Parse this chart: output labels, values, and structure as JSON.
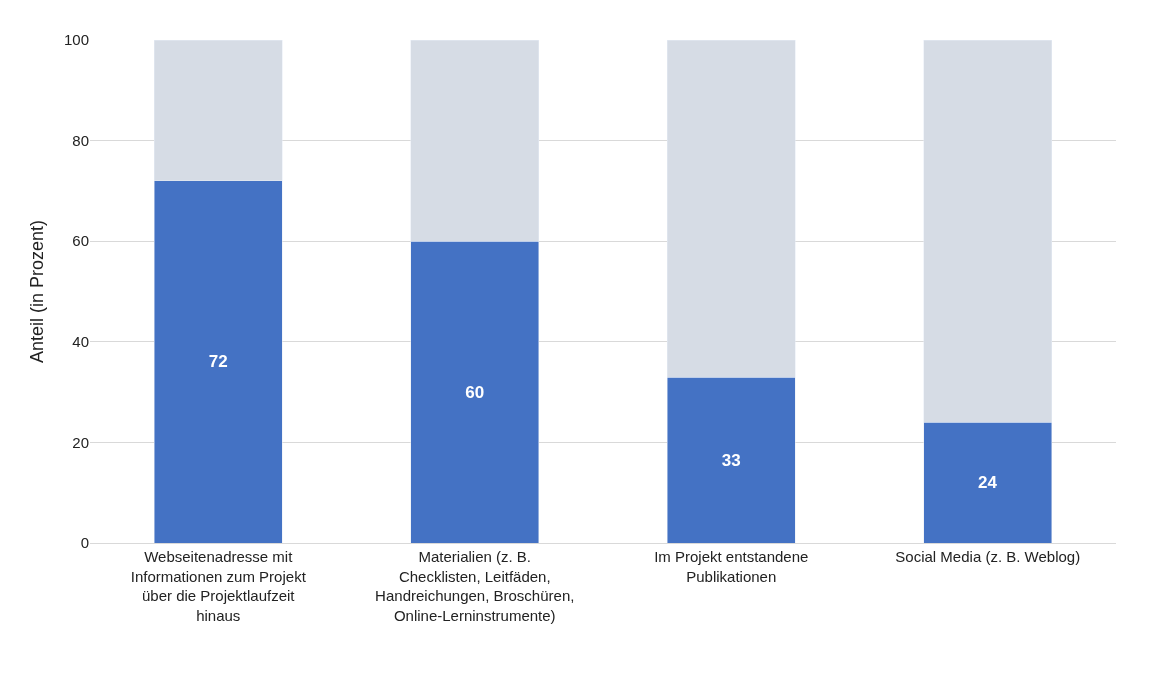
{
  "chart_data": {
    "type": "bar",
    "stacked": true,
    "ylabel": "Anteil (in Prozent)",
    "categories": [
      "Webseitenadresse mit Informationen zum Projekt über die Projektlaufzeit hinaus",
      "Materialien (z. B. Checklisten, Leitfäden, Handreichungen, Broschüren, Online-Lerninstrumente)",
      "Im Projekt entstandene Publikationen",
      "Social Media (z. B. Weblog)"
    ],
    "series": [
      {
        "color": "#4472c4",
        "values": [
          72,
          60,
          33,
          24
        ],
        "value_labels": [
          "72",
          "60",
          "33",
          "24"
        ]
      },
      {
        "color": "#d6dce5",
        "values": [
          28,
          40,
          67,
          76
        ]
      }
    ],
    "ylim": [
      0,
      100
    ],
    "yticks": [
      0,
      20,
      40,
      60,
      80,
      100
    ],
    "grid": "y"
  }
}
